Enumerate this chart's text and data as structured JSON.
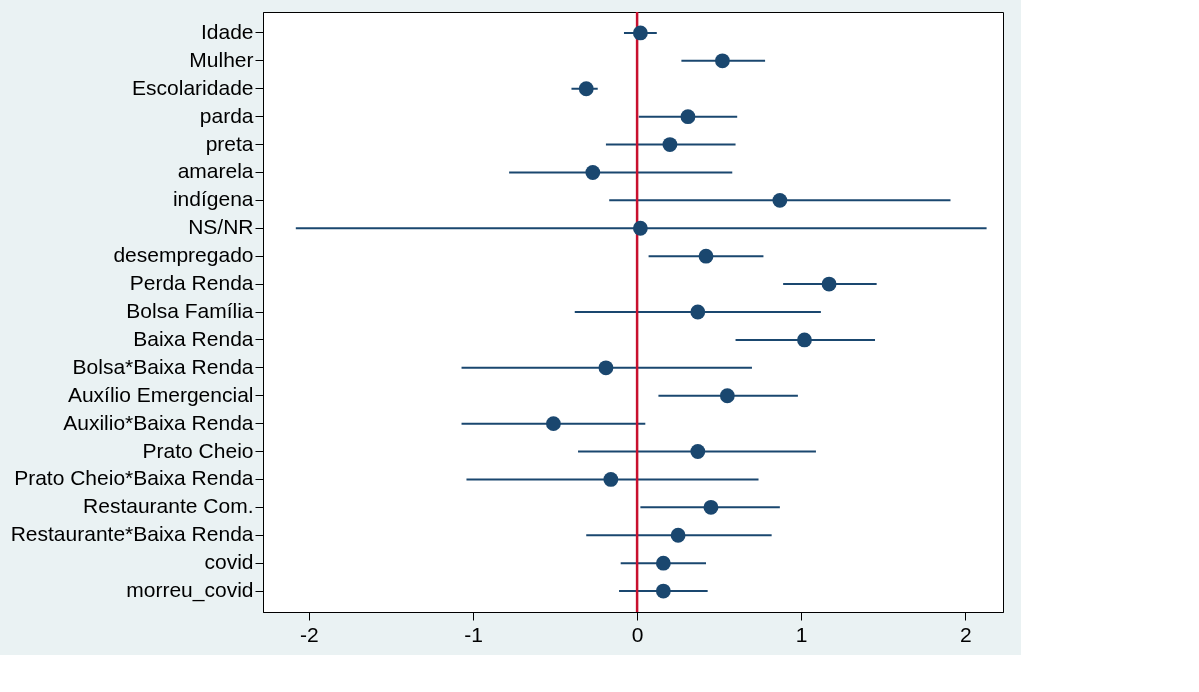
{
  "chart_data": {
    "type": "scatter",
    "orientation": "horizontal",
    "marker": "circle",
    "color": "#1a476f",
    "grid": false,
    "categories": [
      "Idade",
      "Mulher",
      "Escolaridade",
      "parda",
      "preta",
      "amarela",
      "indígena",
      "NS/NR",
      "desempregado",
      "Perda Renda",
      "Bolsa Família",
      "Baixa Renda",
      "Bolsa*Baixa Renda",
      "Auxílio Emergencial",
      "Auxilio*Baixa Renda",
      "Prato Cheio",
      "Prato Cheio*Baixa Renda",
      "Restaurante Com.",
      "Restaurante*Baixa Renda",
      "covid",
      "morreu_covid"
    ],
    "values": [
      0.02,
      0.52,
      -0.31,
      0.31,
      0.2,
      -0.27,
      0.87,
      0.02,
      0.42,
      1.17,
      0.37,
      1.02,
      -0.19,
      0.55,
      -0.51,
      0.37,
      -0.16,
      0.45,
      0.25,
      0.16,
      0.16
    ],
    "errors": [
      [
        -0.08,
        0.12
      ],
      [
        0.27,
        0.78
      ],
      [
        -0.4,
        -0.24
      ],
      [
        0.01,
        0.61
      ],
      [
        -0.19,
        0.6
      ],
      [
        -0.78,
        0.58
      ],
      [
        -0.17,
        1.91
      ],
      [
        -2.08,
        2.13
      ],
      [
        0.07,
        0.77
      ],
      [
        0.89,
        1.46
      ],
      [
        -0.38,
        1.12
      ],
      [
        0.6,
        1.45
      ],
      [
        -1.07,
        0.7
      ],
      [
        0.13,
        0.98
      ],
      [
        -1.07,
        0.05
      ],
      [
        -0.36,
        1.09
      ],
      [
        -1.04,
        0.74
      ],
      [
        0.02,
        0.87
      ],
      [
        -0.31,
        0.82
      ],
      [
        -0.1,
        0.42
      ],
      [
        -0.11,
        0.43
      ]
    ],
    "xlim": [
      -2.28,
      2.23
    ],
    "xticks": [
      -2,
      -1,
      0,
      1,
      2
    ],
    "ref_lines": [
      {
        "axis": "x",
        "value": 0,
        "color": "#c8102e"
      }
    ]
  }
}
